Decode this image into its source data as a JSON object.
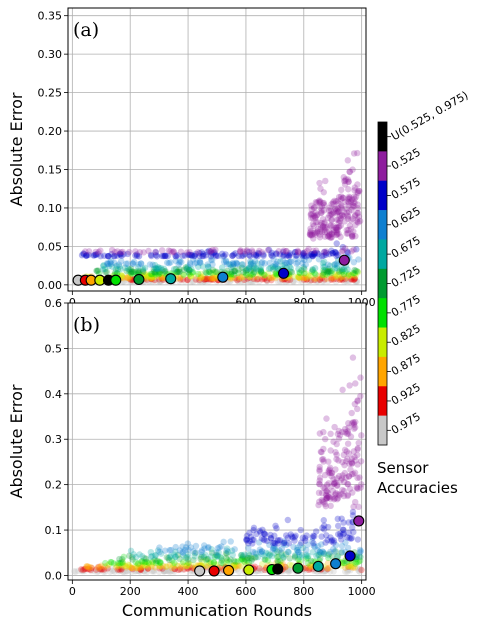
{
  "chart_data": {
    "type": "scatter",
    "x_axis_label": "Communication Rounds",
    "x_ticks": [
      "0",
      "200",
      "400",
      "600",
      "800",
      "1000"
    ],
    "colorbar": {
      "title_lines": [
        "Sensor",
        "Accuracies"
      ],
      "labels": [
        "U(0.525, 0.975)",
        "0.525",
        "0.575",
        "0.625",
        "0.675",
        "0.725",
        "0.775",
        "0.825",
        "0.875",
        "0.925",
        "0.975"
      ],
      "colors": [
        "#000000",
        "#8e1d9e",
        "#0000c8",
        "#0f7fd0",
        "#00a8a0",
        "#009a30",
        "#00e000",
        "#c8ec00",
        "#ffa500",
        "#e80000",
        "#c8c8c8"
      ]
    },
    "panels": [
      {
        "label": "(a)",
        "ylabel": "Absolute Error",
        "xlim": [
          -15,
          1015
        ],
        "ylim": [
          -0.008,
          0.36
        ],
        "y_ticks": [
          "0.00",
          "0.05",
          "0.10",
          "0.15",
          "0.20",
          "0.25",
          "0.30",
          "0.35"
        ],
        "grid": true,
        "markers": [
          {
            "x": 20,
            "y": 0.006,
            "color": "#c8c8c8"
          },
          {
            "x": 45,
            "y": 0.006,
            "color": "#e80000"
          },
          {
            "x": 65,
            "y": 0.006,
            "color": "#ffa500"
          },
          {
            "x": 95,
            "y": 0.006,
            "color": "#c8ec00"
          },
          {
            "x": 125,
            "y": 0.006,
            "color": "#000000"
          },
          {
            "x": 150,
            "y": 0.006,
            "color": "#00e000"
          },
          {
            "x": 230,
            "y": 0.007,
            "color": "#009a30"
          },
          {
            "x": 340,
            "y": 0.008,
            "color": "#00a8a0"
          },
          {
            "x": 520,
            "y": 0.01,
            "color": "#0f7fd0"
          },
          {
            "x": 730,
            "y": 0.015,
            "color": "#0000c8"
          },
          {
            "x": 940,
            "y": 0.032,
            "color": "#8e1d9e"
          }
        ]
      },
      {
        "label": "(b)",
        "ylabel": "Absolute Error",
        "xlim": [
          -15,
          1015
        ],
        "ylim": [
          -0.01,
          0.6
        ],
        "y_ticks": [
          "0.0",
          "0.1",
          "0.2",
          "0.3",
          "0.4",
          "0.5",
          "0.6"
        ],
        "grid": true,
        "markers": [
          {
            "x": 440,
            "y": 0.01,
            "color": "#c8c8c8"
          },
          {
            "x": 490,
            "y": 0.01,
            "color": "#e80000"
          },
          {
            "x": 540,
            "y": 0.011,
            "color": "#ffa500"
          },
          {
            "x": 610,
            "y": 0.012,
            "color": "#c8ec00"
          },
          {
            "x": 690,
            "y": 0.013,
            "color": "#00e000"
          },
          {
            "x": 710,
            "y": 0.014,
            "color": "#000000"
          },
          {
            "x": 780,
            "y": 0.016,
            "color": "#009a30"
          },
          {
            "x": 850,
            "y": 0.02,
            "color": "#00a8a0"
          },
          {
            "x": 910,
            "y": 0.026,
            "color": "#0f7fd0"
          },
          {
            "x": 960,
            "y": 0.043,
            "color": "#0000c8"
          },
          {
            "x": 990,
            "y": 0.12,
            "color": "#8e1d9e"
          }
        ]
      }
    ]
  }
}
